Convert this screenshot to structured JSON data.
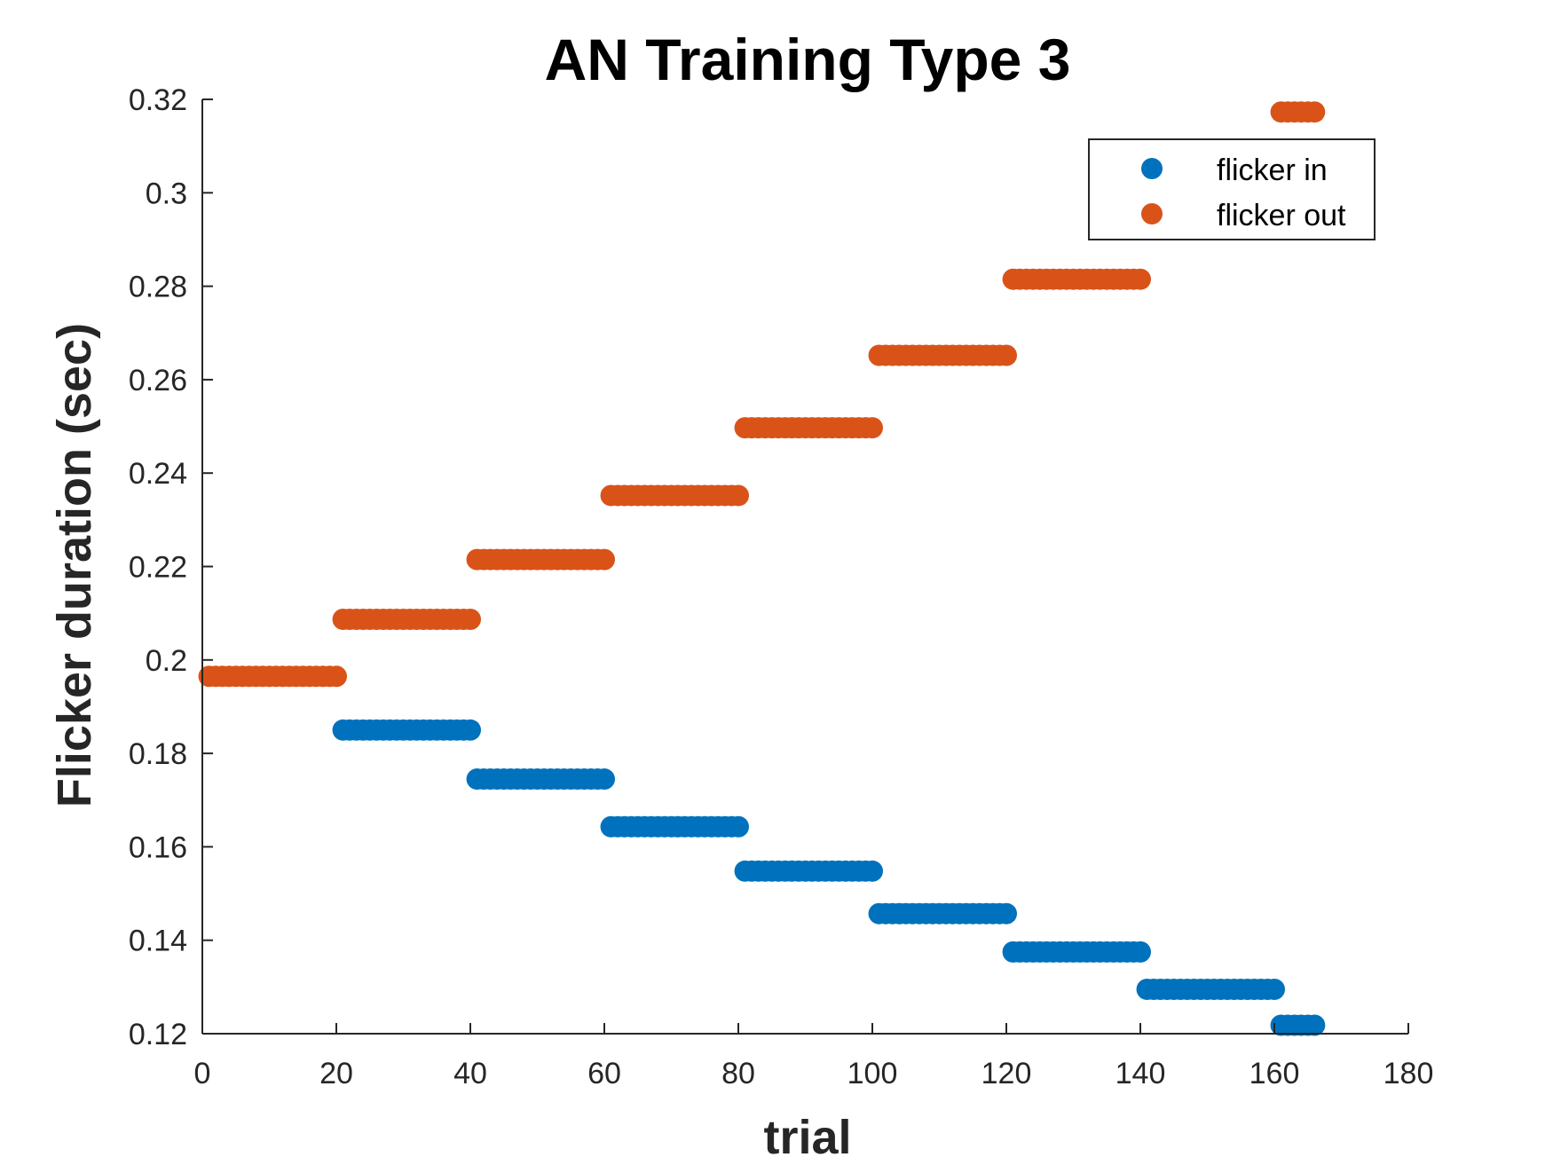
{
  "chart_data": {
    "type": "scatter",
    "title": "AN Training Type 3",
    "xlabel": "trial",
    "ylabel": "Flicker duration (sec)",
    "xlim": [
      0,
      180
    ],
    "ylim": [
      0.12,
      0.32
    ],
    "xticks": [
      "0",
      "20",
      "40",
      "60",
      "80",
      "100",
      "120",
      "140",
      "160",
      "180"
    ],
    "yticks": [
      "0.12",
      "0.14",
      "0.16",
      "0.18",
      "0.2",
      "0.22",
      "0.24",
      "0.26",
      "0.28",
      "0.3",
      "0.32"
    ],
    "grid": false,
    "legend_position": "top-right",
    "series": [
      {
        "name": "flicker in",
        "color": "#0072BD",
        "steps": [
          {
            "x_start": 21,
            "x_end": 40,
            "y": 0.185
          },
          {
            "x_start": 41,
            "x_end": 60,
            "y": 0.1745
          },
          {
            "x_start": 61,
            "x_end": 80,
            "y": 0.1643
          },
          {
            "x_start": 81,
            "x_end": 100,
            "y": 0.1548
          },
          {
            "x_start": 101,
            "x_end": 120,
            "y": 0.1457
          },
          {
            "x_start": 121,
            "x_end": 140,
            "y": 0.1375
          },
          {
            "x_start": 141,
            "x_end": 160,
            "y": 0.1295
          },
          {
            "x_start": 161,
            "x_end": 166,
            "y": 0.1218
          }
        ]
      },
      {
        "name": "flicker out",
        "color": "#D95319",
        "steps": [
          {
            "x_start": 1,
            "x_end": 20,
            "y": 0.1965
          },
          {
            "x_start": 21,
            "x_end": 40,
            "y": 0.2087
          },
          {
            "x_start": 41,
            "x_end": 60,
            "y": 0.2215
          },
          {
            "x_start": 61,
            "x_end": 80,
            "y": 0.2352
          },
          {
            "x_start": 81,
            "x_end": 100,
            "y": 0.2497
          },
          {
            "x_start": 101,
            "x_end": 120,
            "y": 0.2652
          },
          {
            "x_start": 121,
            "x_end": 140,
            "y": 0.2815
          },
          {
            "x_start": 161,
            "x_end": 166,
            "y": 0.3173
          }
        ]
      }
    ]
  }
}
